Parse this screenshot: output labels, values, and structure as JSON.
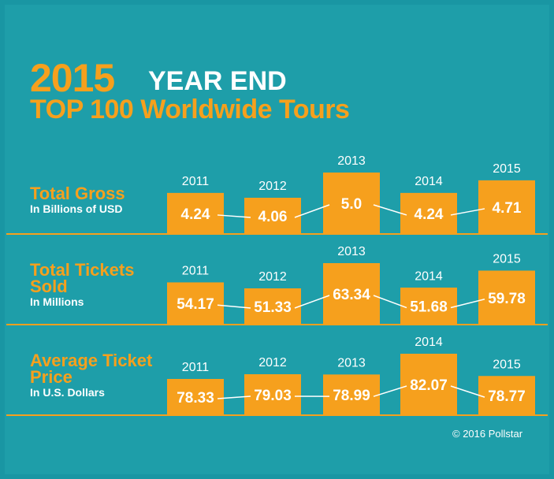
{
  "header": {
    "year": "2015",
    "title": "YEAR END",
    "subtitle": "TOP 100 Worldwide Tours"
  },
  "footer": "© 2016 Pollstar",
  "chart_data": [
    {
      "type": "bar",
      "title": "Total Gross",
      "subtitle": "In Billions of USD",
      "color": "#f6a01d",
      "categories": [
        "2011",
        "2012",
        "2013",
        "2014",
        "2015"
      ],
      "values": [
        4.24,
        4.06,
        5.0,
        4.24,
        4.71
      ],
      "value_labels": [
        "4.24",
        "4.06",
        "5.0",
        "4.24",
        "4.71"
      ]
    },
    {
      "type": "bar",
      "title": "Total Tickets Sold",
      "subtitle": "In Millions",
      "color": "#f6a01d",
      "categories": [
        "2011",
        "2012",
        "2013",
        "2014",
        "2015"
      ],
      "values": [
        54.17,
        51.33,
        63.34,
        51.68,
        59.78
      ]
    },
    {
      "type": "bar",
      "title": "Average Ticket Price",
      "subtitle": "In U.S. Dollars",
      "color": "#f6a01d",
      "categories": [
        "2011",
        "2012",
        "2013",
        "2014",
        "2015"
      ],
      "values": [
        78.33,
        79.03,
        78.99,
        82.07,
        78.77
      ]
    }
  ]
}
